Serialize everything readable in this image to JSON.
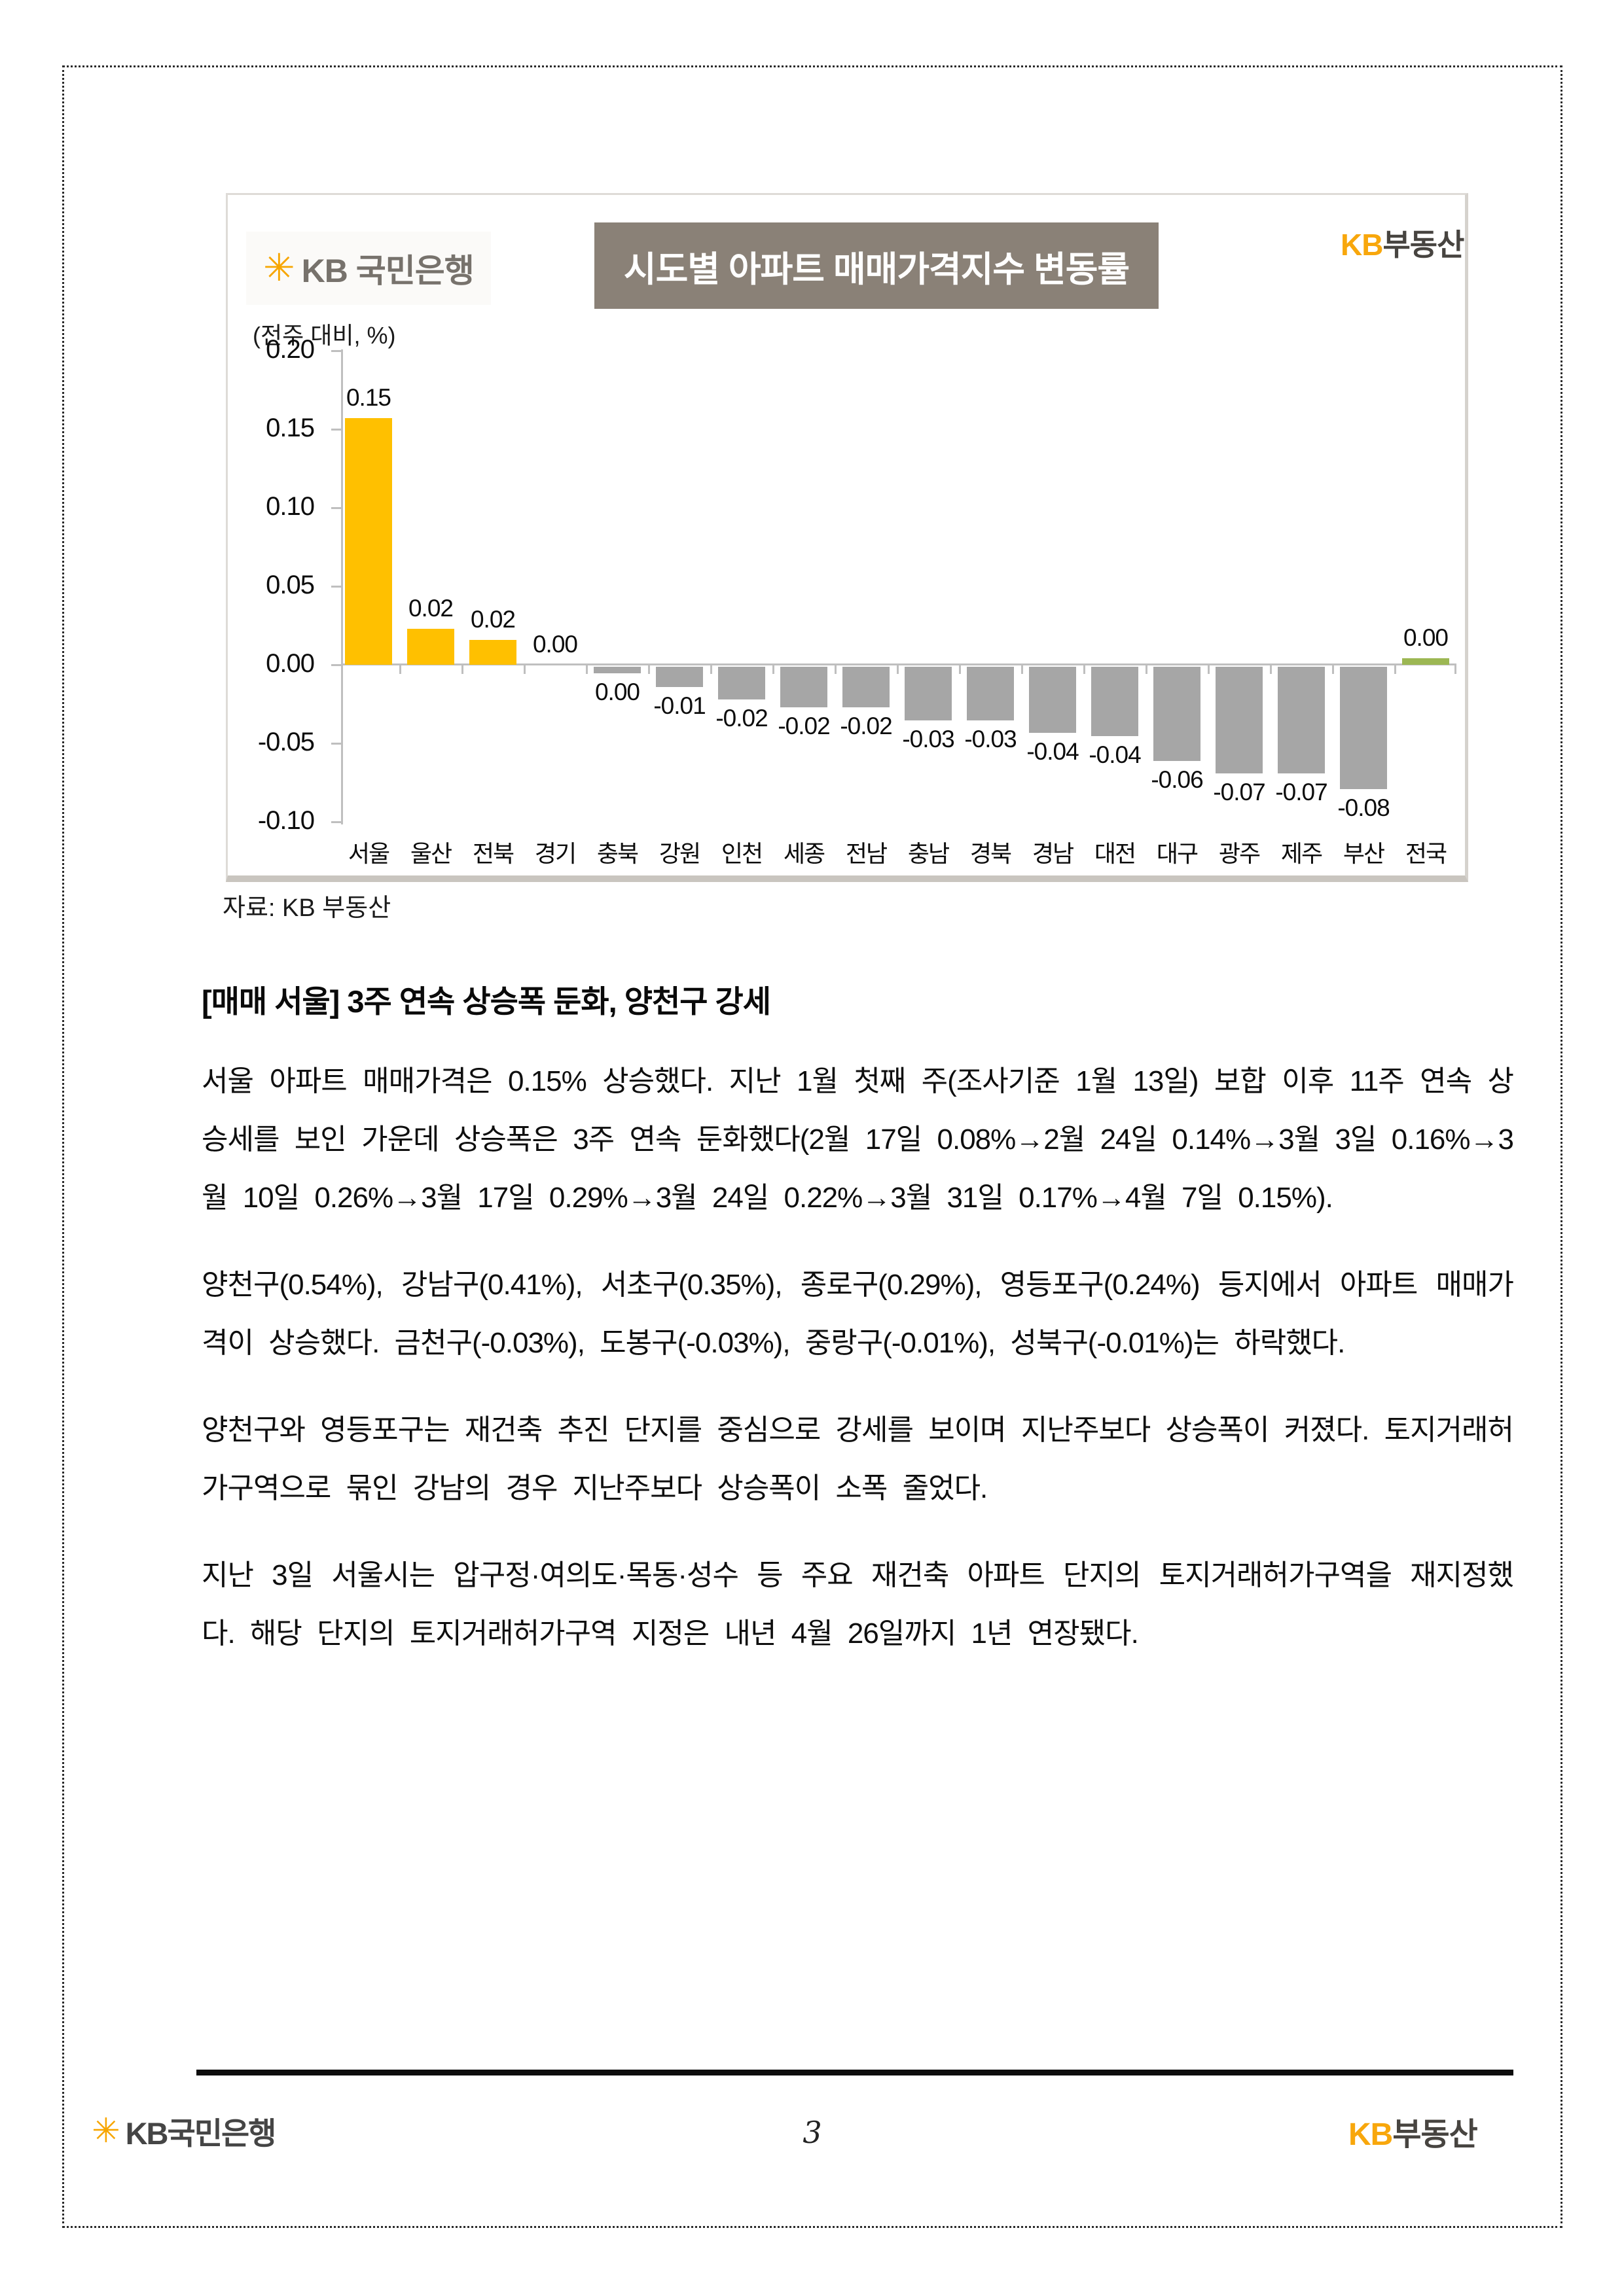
{
  "chart": {
    "bank_logo": {
      "star": "✳",
      "text": "KB 국민은행"
    },
    "title": "시도별 아파트 매매가격지수 변동률",
    "brand_logo": {
      "kb": "KB",
      "name": "부동산"
    },
    "unit_label": "(전주 대비, %)",
    "source": "자료: KB 부동산"
  },
  "chart_data": {
    "type": "bar",
    "title": "시도별 아파트 매매가격지수 변동률",
    "unit": "(전주 대비, %)",
    "categories": [
      "서울",
      "울산",
      "전북",
      "경기",
      "충북",
      "강원",
      "인천",
      "세종",
      "전남",
      "충남",
      "경북",
      "경남",
      "대전",
      "대구",
      "광주",
      "제주",
      "부산",
      "전국"
    ],
    "values": [
      0.15,
      0.02,
      0.02,
      0.0,
      0.0,
      -0.01,
      -0.02,
      -0.02,
      -0.02,
      -0.03,
      -0.03,
      -0.04,
      -0.04,
      -0.06,
      -0.07,
      -0.07,
      -0.08,
      0.0
    ],
    "value_labels": [
      "0.15",
      "0.02",
      "0.02",
      "0.00",
      "0.00",
      "-0.01",
      "-0.02",
      "-0.02",
      "-0.02",
      "-0.03",
      "-0.03",
      "-0.04",
      "-0.04",
      "-0.06",
      "-0.07",
      "-0.07",
      "-0.08",
      "0.00"
    ],
    "values_precise": [
      0.157,
      0.023,
      0.016,
      0.0,
      -0.004,
      -0.013,
      -0.021,
      -0.026,
      -0.026,
      -0.034,
      -0.034,
      -0.042,
      -0.044,
      -0.06,
      -0.068,
      -0.068,
      -0.078,
      0.004
    ],
    "colors": [
      "#FFC000",
      "#FFC000",
      "#FFC000",
      "#FFC000",
      "#A6A6A6",
      "#A6A6A6",
      "#A6A6A6",
      "#A6A6A6",
      "#A6A6A6",
      "#A6A6A6",
      "#A6A6A6",
      "#A6A6A6",
      "#A6A6A6",
      "#A6A6A6",
      "#A6A6A6",
      "#A6A6A6",
      "#A6A6A6",
      "#9CB753"
    ],
    "accent_colors": {
      "highlight": "#FFC000",
      "negative": "#A6A6A6",
      "national": "#9CB753",
      "axis": "#BFBFBF"
    },
    "ylim": [
      -0.1,
      0.2
    ],
    "yticks": [
      "0.20",
      "0.15",
      "0.10",
      "0.05",
      "0.00",
      "-0.05",
      "-0.10"
    ],
    "grid": false,
    "legend": false
  },
  "article": {
    "heading": "[매매 서울] 3주 연속 상승폭 둔화, 양천구 강세",
    "paragraphs": [
      "서울 아파트 매매가격은 0.15% 상승했다. 지난 1월 첫째 주(조사기준 1월 13일) 보합 이후 11주 연속 상승세를 보인 가운데 상승폭은 3주 연속 둔화했다(2월 17일 0.08%→2월 24일 0.14%→3월 3일 0.16%→3월 10일 0.26%→3월 17일 0.29%→3월 24일 0.22%→3월 31일 0.17%→4월 7일 0.15%).",
      "양천구(0.54%), 강남구(0.41%), 서초구(0.35%), 종로구(0.29%), 영등포구(0.24%) 등지에서 아파트 매매가격이 상승했다. 금천구(-0.03%), 도봉구(-0.03%), 중랑구(-0.01%), 성북구(-0.01%)는 하락했다.",
      "양천구와 영등포구는 재건축 추진 단지를 중심으로 강세를 보이며 지난주보다 상승폭이 커졌다. 토지거래허가구역으로 묶인 강남의 경우 지난주보다 상승폭이 소폭 줄었다.",
      "지난 3일 서울시는 압구정·여의도·목동·성수 등 주요 재건축 아파트 단지의 토지거래허가구역을 재지정했다. 해당 단지의 토지거래허가구역 지정은 내년 4월 26일까지 1년 연장됐다."
    ]
  },
  "footer": {
    "left_logo": {
      "star": "✳",
      "text": "KB국민은행"
    },
    "page_number": "3",
    "right_logo": {
      "kb": "KB",
      "name": "부동산"
    }
  }
}
